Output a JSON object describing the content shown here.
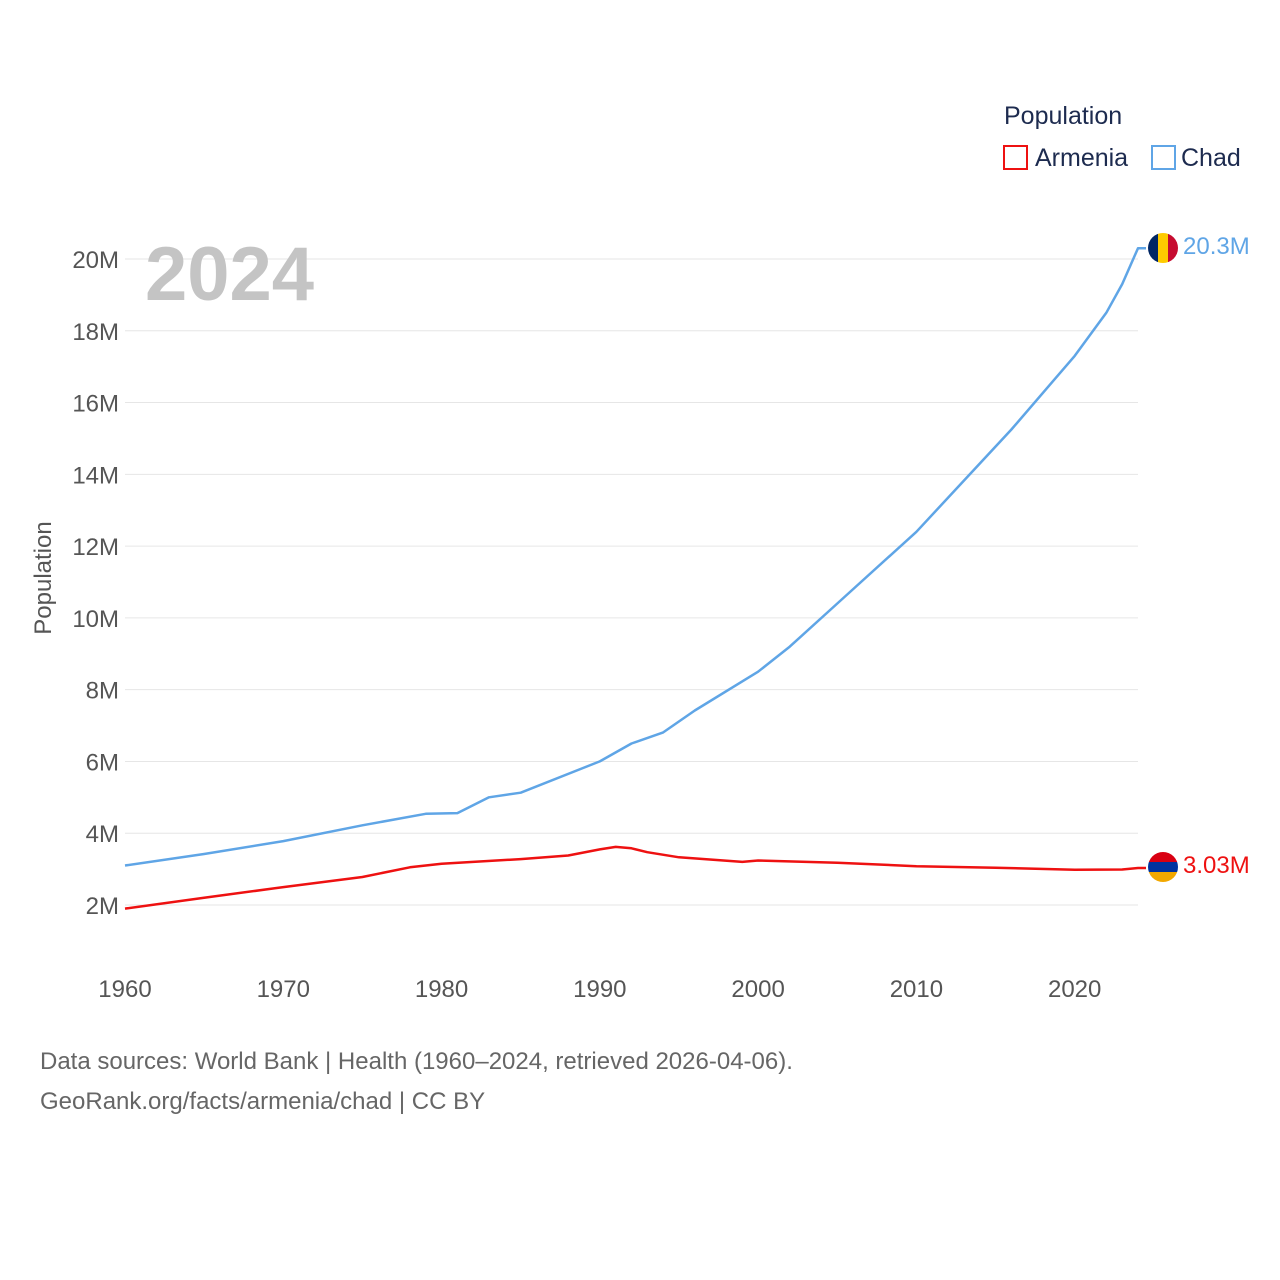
{
  "chart_data": {
    "type": "line",
    "year_display": "2024",
    "legend": {
      "title": "Population"
    },
    "ylabel": "Population",
    "ylim": [
      0,
      21000000
    ],
    "xlim": [
      1960,
      2024
    ],
    "y_ticks": [
      {
        "value": 2000000,
        "label": "2M"
      },
      {
        "value": 4000000,
        "label": "4M"
      },
      {
        "value": 6000000,
        "label": "6M"
      },
      {
        "value": 8000000,
        "label": "8M"
      },
      {
        "value": 10000000,
        "label": "10M"
      },
      {
        "value": 12000000,
        "label": "12M"
      },
      {
        "value": 14000000,
        "label": "14M"
      },
      {
        "value": 16000000,
        "label": "16M"
      },
      {
        "value": 18000000,
        "label": "18M"
      },
      {
        "value": 20000000,
        "label": "20M"
      }
    ],
    "x_ticks": [
      {
        "value": 1960,
        "label": "1960"
      },
      {
        "value": 1970,
        "label": "1970"
      },
      {
        "value": 1980,
        "label": "1980"
      },
      {
        "value": 1990,
        "label": "1990"
      },
      {
        "value": 2000,
        "label": "2000"
      },
      {
        "value": 2010,
        "label": "2010"
      },
      {
        "value": 2020,
        "label": "2020"
      }
    ],
    "series": [
      {
        "name": "Armenia",
        "color": "#ee1111",
        "end_label": "3.03M",
        "flag": "armenia-flag-icon",
        "points": [
          [
            1960,
            1900000
          ],
          [
            1965,
            2200000
          ],
          [
            1970,
            2500000
          ],
          [
            1975,
            2780000
          ],
          [
            1978,
            3050000
          ],
          [
            1980,
            3150000
          ],
          [
            1985,
            3280000
          ],
          [
            1988,
            3380000
          ],
          [
            1990,
            3550000
          ],
          [
            1991,
            3620000
          ],
          [
            1992,
            3580000
          ],
          [
            1993,
            3470000
          ],
          [
            1995,
            3330000
          ],
          [
            1999,
            3200000
          ],
          [
            2000,
            3240000
          ],
          [
            2005,
            3180000
          ],
          [
            2010,
            3080000
          ],
          [
            2015,
            3040000
          ],
          [
            2020,
            2980000
          ],
          [
            2023,
            2990000
          ],
          [
            2024,
            3030000
          ]
        ]
      },
      {
        "name": "Chad",
        "color": "#5fa5e6",
        "end_label": "20.3M",
        "flag": "chad-flag-icon",
        "points": [
          [
            1960,
            3100000
          ],
          [
            1965,
            3420000
          ],
          [
            1970,
            3780000
          ],
          [
            1975,
            4220000
          ],
          [
            1979,
            4540000
          ],
          [
            1981,
            4560000
          ],
          [
            1983,
            5000000
          ],
          [
            1985,
            5130000
          ],
          [
            1990,
            6000000
          ],
          [
            1992,
            6500000
          ],
          [
            1994,
            6810000
          ],
          [
            1996,
            7420000
          ],
          [
            2000,
            8500000
          ],
          [
            2002,
            9200000
          ],
          [
            2005,
            10400000
          ],
          [
            2010,
            12400000
          ],
          [
            2014,
            14300000
          ],
          [
            2016,
            15250000
          ],
          [
            2020,
            17300000
          ],
          [
            2022,
            18500000
          ],
          [
            2023,
            19300000
          ],
          [
            2024,
            20300000
          ]
        ]
      }
    ]
  },
  "footer": {
    "line1": "Data sources: World Bank | Health (1960–2024, retrieved 2026-04-06).",
    "line2": "GeoRank.org/facts/armenia/chad | CC BY"
  }
}
